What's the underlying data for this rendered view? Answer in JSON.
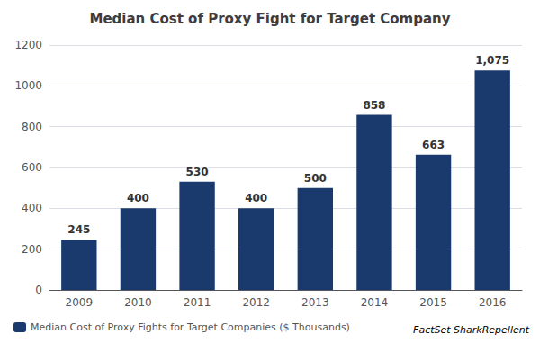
{
  "chart_data": {
    "type": "bar",
    "title": "Median Cost of Proxy Fight for Target Company",
    "categories": [
      "2009",
      "2010",
      "2011",
      "2012",
      "2013",
      "2014",
      "2015",
      "2016"
    ],
    "series": [
      {
        "name": "Median Cost of Proxy Fights for Target Companies ($ Thousands)",
        "color": "#1a3a6e",
        "values": [
          245,
          400,
          530,
          400,
          500,
          858,
          663,
          1075
        ],
        "value_labels": [
          "245",
          "400",
          "530",
          "400",
          "500",
          "858",
          "663",
          "1,075"
        ]
      }
    ],
    "ylim": [
      0,
      1200
    ],
    "yticks": [
      0,
      200,
      400,
      600,
      800,
      1000,
      1200
    ],
    "grid": true,
    "data_labels": true,
    "legend": "bottom-left",
    "annotation": "FactSet SharkRepellent"
  }
}
